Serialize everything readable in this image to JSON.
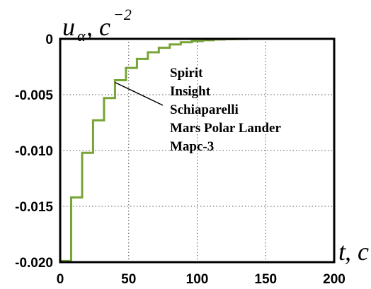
{
  "chart_data": {
    "type": "line",
    "ylabel": {
      "main": "u",
      "subscript": "α",
      "unit": ", c",
      "superscript": "−2"
    },
    "xlabel": {
      "main": "t",
      "unit": ", c"
    },
    "xlim": [
      0,
      200
    ],
    "ylim": [
      -0.02,
      0
    ],
    "x_ticks": [
      "0",
      "50",
      "100",
      "150",
      "200"
    ],
    "y_ticks": [
      "0",
      "-0.005",
      "-0.010",
      "-0.015",
      "-0.020"
    ],
    "grid": true,
    "line_color": "#77a436",
    "series": [
      {
        "step": true,
        "x": [
          0,
          8,
          8,
          16,
          16,
          24,
          24,
          32,
          32,
          40,
          40,
          48,
          48,
          56,
          56,
          64,
          64,
          72,
          72,
          80,
          80,
          88,
          88,
          96,
          96,
          104,
          104,
          112,
          112,
          120,
          120,
          128,
          128,
          136,
          136,
          200
        ],
        "y": [
          -0.0199,
          -0.0199,
          -0.0142,
          -0.0142,
          -0.0102,
          -0.0102,
          -0.0073,
          -0.0073,
          -0.0053,
          -0.0053,
          -0.0037,
          -0.0037,
          -0.0026,
          -0.0026,
          -0.0018,
          -0.0018,
          -0.0012,
          -0.0012,
          -0.0008,
          -0.0008,
          -0.0005,
          -0.0005,
          -0.0003,
          -0.0003,
          -0.0002,
          -0.0002,
          -0.00012,
          -0.00012,
          -6e-05,
          -6e-05,
          -3e-05,
          -3e-05,
          -1e-05,
          -1e-05,
          0,
          0
        ]
      }
    ],
    "legend": {
      "entries": [
        "Spirit",
        "Insight",
        "Schiaparelli",
        "Mars Polar Lander",
        "Марс-3"
      ],
      "pointer_to": {
        "x": 40,
        "y": -0.0039
      }
    }
  }
}
